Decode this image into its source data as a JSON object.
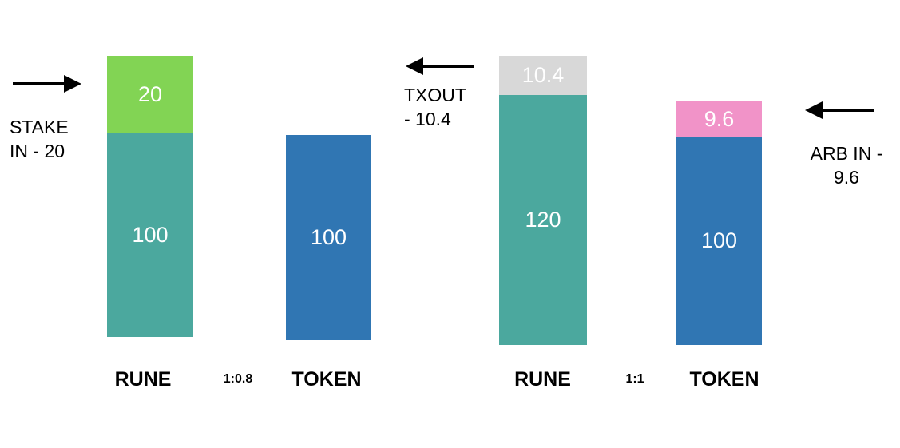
{
  "colors": {
    "rune": "#4ba89e",
    "token": "#3076b3",
    "stake": "#82d454",
    "txout": "#d8d8d8",
    "arb": "#f193c8",
    "text": "#000000",
    "segment_text": "#ffffff"
  },
  "before": {
    "rune_label": "RUNE",
    "token_label": "TOKEN",
    "ratio": "1:0.8",
    "rune_base": "100",
    "rune_stake": "20",
    "token_base": "100",
    "stake_note_line1": "STAKE",
    "stake_note_line2": "IN - 20"
  },
  "after": {
    "rune_label": "RUNE",
    "token_label": "TOKEN",
    "ratio": "1:1",
    "rune_base": "120",
    "rune_txout": "10.4",
    "token_base": "100",
    "token_arb": "9.6",
    "txout_note_line1": "TXOUT",
    "txout_note_line2": "- 10.4",
    "arb_note_line1": "ARB IN -",
    "arb_note_line2": "9.6"
  },
  "icons": {
    "stake_arrow": "arrow-right-icon",
    "txout_arrow": "arrow-left-icon",
    "arb_arrow": "arrow-left-icon"
  }
}
